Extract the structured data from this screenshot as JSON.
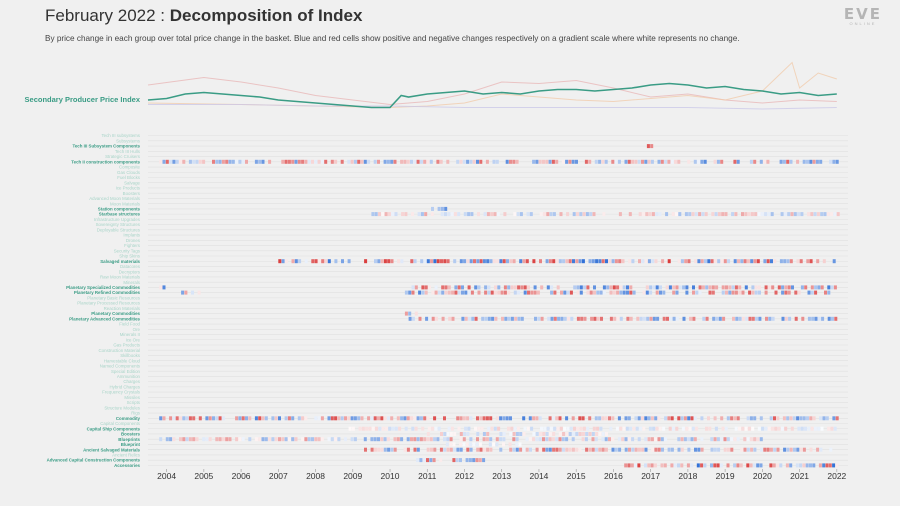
{
  "title_light": "February 2022 : ",
  "title_bold": "Decomposition of Index",
  "subtitle": "By price change in each group over total price change in the basket. Blue and red cells show positive and negative changes respectively on a gradient scale where white represents no change.",
  "logo": {
    "text": "EVE",
    "sub": "ONLINE"
  },
  "colors": {
    "background": "#f0f0f0",
    "index_line": "#3a9c85",
    "label_highlight": "#3a9c85",
    "label_faded": "#a8d4c8",
    "positive": "#2f6fd6",
    "negative": "#d93a3a",
    "neutral": "#ffffff",
    "grid": "#e0e0e0",
    "axis_text": "#333333"
  },
  "chart_data": [
    {
      "type": "line",
      "title": "Secondary Producer Price Index",
      "series": [
        {
          "name": "Secondary Producer Price Index",
          "role": "main",
          "x": [
            2003.5,
            2004,
            2004.5,
            2005,
            2005.5,
            2006,
            2006.5,
            2007,
            2007.5,
            2008,
            2008.5,
            2009,
            2009.5,
            2010,
            2010.3,
            2010.5,
            2011,
            2011.5,
            2012,
            2012.5,
            2013,
            2013.5,
            2014,
            2014.5,
            2015,
            2015.5,
            2016,
            2016.5,
            2017,
            2017.5,
            2018,
            2018.5,
            2019,
            2019.5,
            2020,
            2020.5,
            2021,
            2021.5,
            2022
          ],
          "values": [
            100,
            101,
            104,
            105,
            104,
            103,
            102,
            100,
            99,
            98,
            97,
            96,
            95,
            95,
            103,
            102,
            104,
            105,
            106,
            104,
            105,
            104,
            106,
            107,
            107,
            106,
            107,
            108,
            110,
            111,
            110,
            108,
            109,
            107,
            106,
            104,
            105,
            103,
            104
          ]
        },
        {
          "name": "Group A",
          "role": "background",
          "color": "#e8b4b4",
          "x": [
            2003.5,
            2005,
            2006,
            2007,
            2008,
            2009,
            2010,
            2011,
            2012,
            2013,
            2014,
            2015,
            2016,
            2017,
            2018,
            2019,
            2020,
            2021,
            2022
          ],
          "values": [
            110,
            115,
            112,
            108,
            103,
            100,
            97,
            99,
            104,
            112,
            111,
            113,
            108,
            102,
            104,
            100,
            98,
            100,
            99
          ]
        },
        {
          "name": "Group B",
          "role": "background",
          "color": "#f2c9a8",
          "x": [
            2003.5,
            2006,
            2008,
            2010,
            2011,
            2012,
            2013,
            2014,
            2015,
            2016,
            2017,
            2018,
            2019,
            2020,
            2020.8,
            2021,
            2021.5,
            2022
          ],
          "values": [
            98,
            97,
            96,
            95,
            96,
            98,
            104,
            102,
            100,
            99,
            101,
            103,
            100,
            106,
            125,
            108,
            118,
            114
          ]
        },
        {
          "name": "Group C",
          "role": "background",
          "color": "#c9c7e8",
          "x": [
            2003.5,
            2006,
            2008,
            2010,
            2012,
            2014,
            2016,
            2018,
            2020,
            2022
          ],
          "values": [
            97,
            97,
            96,
            96,
            95,
            95,
            95,
            95,
            94,
            95
          ]
        }
      ],
      "xlim": [
        2003.5,
        2022.3
      ],
      "ylim": [
        88,
        130
      ]
    },
    {
      "type": "heatmap",
      "title": "Decomposition of Index",
      "x_ticks": [
        "2004",
        "2005",
        "2006",
        "2007",
        "2008",
        "2009",
        "2010",
        "2011",
        "2012",
        "2013",
        "2014",
        "2015",
        "2016",
        "2017",
        "2018",
        "2019",
        "2020",
        "2021",
        "2022"
      ],
      "xlim": [
        2003.5,
        2022.3
      ],
      "rows": [
        {
          "label": "Tech III subsystems",
          "highlight": false
        },
        {
          "label": "Subsystems",
          "highlight": false
        },
        {
          "label": "Tech III Subsystem Components",
          "highlight": true,
          "activity": [
            {
              "start": 2016.9,
              "end": 2017.0,
              "intensity": 1
            }
          ]
        },
        {
          "label": "Tech III Hulls",
          "highlight": false
        },
        {
          "label": "Strategic Cruisers",
          "highlight": false
        },
        {
          "label": "Tech II construction components",
          "highlight": true,
          "activity": [
            {
              "start": 2003.8,
              "end": 2022.0,
              "intensity": 0.8
            }
          ]
        },
        {
          "label": "Composite",
          "highlight": false
        },
        {
          "label": "Gas Clouds",
          "highlight": false
        },
        {
          "label": "Fuel Blocks",
          "highlight": false
        },
        {
          "label": "Salvage",
          "highlight": false
        },
        {
          "label": "Ice Products",
          "highlight": false
        },
        {
          "label": "Boosters",
          "highlight": false
        },
        {
          "label": "Advanced Moon Materials",
          "highlight": false
        },
        {
          "label": "Moon Materials",
          "highlight": false
        },
        {
          "label": "Station components",
          "highlight": true,
          "activity": [
            {
              "start": 2011.1,
              "end": 2011.5,
              "intensity": 0.9
            }
          ]
        },
        {
          "label": "Starbase structures",
          "highlight": true,
          "activity": [
            {
              "start": 2009.5,
              "end": 2022.0,
              "intensity": 0.45
            }
          ]
        },
        {
          "label": "Infrastructure Upgrades",
          "highlight": false
        },
        {
          "label": "Sovereignty Structures",
          "highlight": false
        },
        {
          "label": "Deployable Structures",
          "highlight": false
        },
        {
          "label": "Implants",
          "highlight": false
        },
        {
          "label": "Drones",
          "highlight": false
        },
        {
          "label": "Fighters",
          "highlight": false
        },
        {
          "label": "Security Tags",
          "highlight": false
        },
        {
          "label": "Ship Skins",
          "highlight": false
        },
        {
          "label": "Salvaged materials",
          "highlight": true,
          "activity": [
            {
              "start": 2007.0,
              "end": 2022.0,
              "intensity": 1
            }
          ]
        },
        {
          "label": "Datacores",
          "highlight": false
        },
        {
          "label": "Decryptors",
          "highlight": false
        },
        {
          "label": "Raw Moon Materials",
          "highlight": false
        },
        {
          "label": "Minerals",
          "highlight": false
        },
        {
          "label": "Planetary Specialized Commodities",
          "highlight": true,
          "activity": [
            {
              "start": 2003.8,
              "end": 2004.0,
              "intensity": 1
            },
            {
              "start": 2010.4,
              "end": 2022.0,
              "intensity": 0.9
            }
          ]
        },
        {
          "label": "Planetary Refined Commodities",
          "highlight": true,
          "activity": [
            {
              "start": 2004.3,
              "end": 2004.9,
              "intensity": 0.7
            },
            {
              "start": 2010.4,
              "end": 2022.0,
              "intensity": 0.85
            }
          ]
        },
        {
          "label": "Planetary Basic Resources",
          "highlight": false
        },
        {
          "label": "Planetary Processed Resources",
          "highlight": false
        },
        {
          "label": "Reaction Materials",
          "highlight": false
        },
        {
          "label": "Planetary Commodities",
          "highlight": true,
          "activity": [
            {
              "start": 2010.4,
              "end": 2010.7,
              "intensity": 0.5
            }
          ]
        },
        {
          "label": "Planetary Advanced Commodities",
          "highlight": true,
          "activity": [
            {
              "start": 2010.5,
              "end": 2022.0,
              "intensity": 0.8
            }
          ]
        },
        {
          "label": "Field Food",
          "highlight": false
        },
        {
          "label": "Ore",
          "highlight": false
        },
        {
          "label": "Minerals II",
          "highlight": false
        },
        {
          "label": "Ice Ore",
          "highlight": false
        },
        {
          "label": "Gas Products",
          "highlight": false
        },
        {
          "label": "Construction Material",
          "highlight": false
        },
        {
          "label": "Skillbooks",
          "highlight": false
        },
        {
          "label": "Harvestable Cloud",
          "highlight": false
        },
        {
          "label": "Named Components",
          "highlight": false
        },
        {
          "label": "Special Edition",
          "highlight": false
        },
        {
          "label": "Ammunition",
          "highlight": false
        },
        {
          "label": "Charges",
          "highlight": false
        },
        {
          "label": "Hybrid Charges",
          "highlight": false
        },
        {
          "label": "Frequency Crystals",
          "highlight": false
        },
        {
          "label": "Missiles",
          "highlight": false
        },
        {
          "label": "Scripts",
          "highlight": false
        },
        {
          "label": "Structure Modules",
          "highlight": false
        },
        {
          "label": "Rigs",
          "highlight": false
        },
        {
          "label": "Commodity",
          "highlight": true,
          "activity": [
            {
              "start": 2003.8,
              "end": 2022.0,
              "intensity": 0.9
            }
          ]
        },
        {
          "label": "Capital Components",
          "highlight": false
        },
        {
          "label": "Capital Ship Components",
          "highlight": true,
          "activity": [
            {
              "start": 2008.8,
              "end": 2022.0,
              "intensity": 0.25
            }
          ]
        },
        {
          "label": "Boosters",
          "highlight": true,
          "activity": [
            {
              "start": 2010.9,
              "end": 2015.9,
              "intensity": 0.4
            }
          ]
        },
        {
          "label": "Blueprints",
          "highlight": true,
          "activity": [
            {
              "start": 2003.8,
              "end": 2020.0,
              "intensity": 0.6
            }
          ]
        },
        {
          "label": "Blueprint",
          "highlight": true,
          "activity": [
            {
              "start": 2011.5,
              "end": 2013.5,
              "intensity": 0.2
            }
          ]
        },
        {
          "label": "Ancient Salvaged Materials",
          "highlight": true,
          "activity": [
            {
              "start": 2009.3,
              "end": 2022.0,
              "intensity": 0.8
            }
          ]
        },
        {
          "label": "Ancient Relics",
          "highlight": false
        },
        {
          "label": "Advanced Capital Construction Components",
          "highlight": true,
          "activity": [
            {
              "start": 2010.7,
              "end": 2012.5,
              "intensity": 0.8
            }
          ]
        },
        {
          "label": "Accessories",
          "highlight": true,
          "activity": [
            {
              "start": 2016.2,
              "end": 2022.0,
              "intensity": 1
            }
          ]
        }
      ]
    }
  ]
}
